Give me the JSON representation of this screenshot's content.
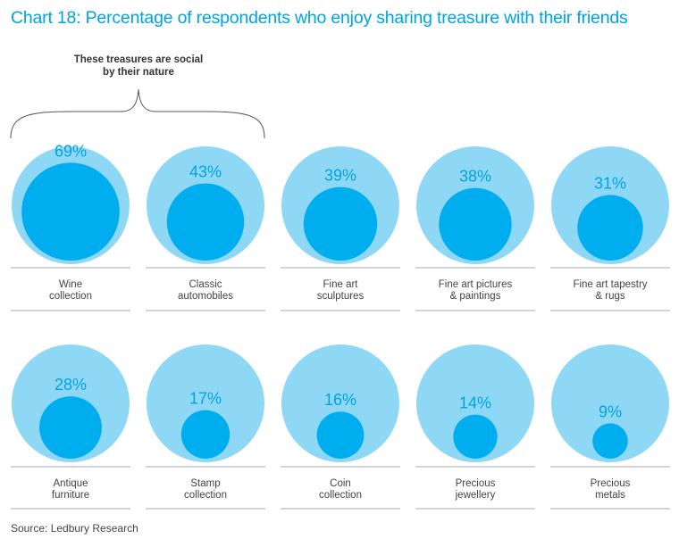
{
  "title": "Chart 18: Percentage of respondents who enjoy sharing treasure with their friends",
  "annotation": [
    "These treasures are social",
    "by their nature"
  ],
  "source": "Source: Ledbury Research",
  "colors": {
    "outer": "#8fd8f5",
    "inner": "#00aeef",
    "text": "#00a3e0",
    "rule": "#aaaaaa",
    "label": "#444444"
  },
  "chart_data": {
    "type": "bubble",
    "unit": "%",
    "max_value": 100,
    "categories": [
      {
        "label": [
          "Wine",
          "collection"
        ],
        "value": 69,
        "value_label": "69%"
      },
      {
        "label": [
          "Classic",
          "automobiles"
        ],
        "value": 43,
        "value_label": "43%"
      },
      {
        "label": [
          "Fine art",
          "sculptures"
        ],
        "value": 39,
        "value_label": "39%"
      },
      {
        "label": [
          "Fine art pictures",
          "& paintings"
        ],
        "value": 38,
        "value_label": "38%"
      },
      {
        "label": [
          "Fine art tapestry",
          "& rugs"
        ],
        "value": 31,
        "value_label": "31%"
      },
      {
        "label": [
          "Antique",
          "furniture"
        ],
        "value": 28,
        "value_label": "28%"
      },
      {
        "label": [
          "Stamp",
          "collection"
        ],
        "value": 17,
        "value_label": "17%"
      },
      {
        "label": [
          "Coin",
          "collection"
        ],
        "value": 16,
        "value_label": "16%"
      },
      {
        "label": [
          "Precious",
          "jewellery"
        ],
        "value": 14,
        "value_label": "14%"
      },
      {
        "label": [
          "Precious",
          "metals"
        ],
        "value": 9,
        "value_label": "9%"
      }
    ],
    "bracket_covers": [
      "Wine collection",
      "Classic automobiles"
    ]
  }
}
